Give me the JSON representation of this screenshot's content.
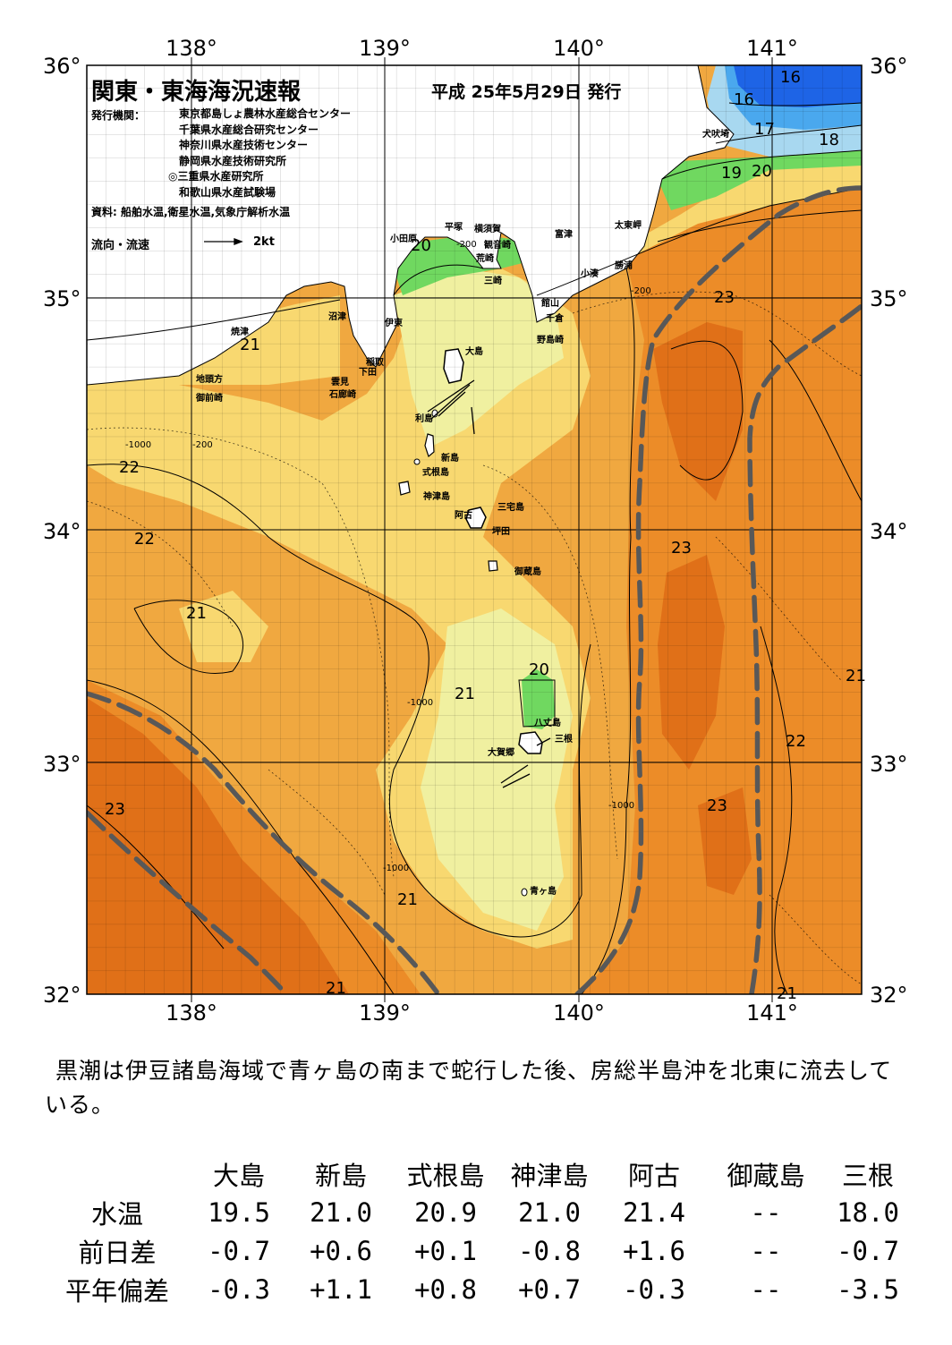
{
  "header": {
    "title": "関東・東海海況速報",
    "date": "平成 25年5月29日 発行",
    "publisher_label": "発行機関：",
    "publishers": [
      "東京都島しょ農林水産総合センター",
      "千葉県水産総合研究センター",
      "神奈川県水産技術センター",
      "静岡県水産技術研究所",
      "◎三重県水産研究所",
      "和歌山県水産試験場"
    ],
    "sources": "資料: 船舶水温,衛星水温,気象庁解析水温",
    "legend_label": "流向・流速",
    "legend_scale": "2kt"
  },
  "axes": {
    "lon_labels": [
      "138°",
      "139°",
      "140°",
      "141°"
    ],
    "lat_labels": [
      "36°",
      "35°",
      "34°",
      "33°",
      "32°"
    ],
    "lon_range": [
      137.5,
      141.5
    ],
    "lat_range": [
      32.0,
      36.0
    ]
  },
  "places": [
    {
      "id": "inubozaki",
      "name": "犬吠埼"
    },
    {
      "id": "taitomisaki",
      "name": "太東岬"
    },
    {
      "id": "katsuura",
      "name": "勝浦"
    },
    {
      "id": "kominato",
      "name": "小湊"
    },
    {
      "id": "futtsu",
      "name": "富津"
    },
    {
      "id": "kannonzaki",
      "name": "観音崎"
    },
    {
      "id": "yokosuka",
      "name": "横須賀"
    },
    {
      "id": "hiratsuka",
      "name": "平塚"
    },
    {
      "id": "odawara",
      "name": "小田原"
    },
    {
      "id": "araizaki",
      "name": "荒崎"
    },
    {
      "id": "misaki",
      "name": "三崎"
    },
    {
      "id": "tateyama",
      "name": "館山"
    },
    {
      "id": "chikura",
      "name": "千倉"
    },
    {
      "id": "nojimazaki",
      "name": "野島崎"
    },
    {
      "id": "numazu",
      "name": "沼津"
    },
    {
      "id": "ito",
      "name": "伊東"
    },
    {
      "id": "yaizu",
      "name": "焼津"
    },
    {
      "id": "inatori",
      "name": "稲取"
    },
    {
      "id": "shimoda",
      "name": "下田"
    },
    {
      "id": "kumomi",
      "name": "雲見"
    },
    {
      "id": "irozaki",
      "name": "石廊崎"
    },
    {
      "id": "jitokata",
      "name": "地頭方"
    },
    {
      "id": "omaezaki",
      "name": "御前崎"
    },
    {
      "id": "oshima",
      "name": "大島"
    },
    {
      "id": "toshima",
      "name": "利島"
    },
    {
      "id": "niijima",
      "name": "新島"
    },
    {
      "id": "shikinejima",
      "name": "式根島"
    },
    {
      "id": "kozushima",
      "name": "神津島"
    },
    {
      "id": "miyakejima",
      "name": "三宅島"
    },
    {
      "id": "ako",
      "name": "阿古"
    },
    {
      "id": "tsubota",
      "name": "坪田"
    },
    {
      "id": "mikurajima",
      "name": "御蔵島"
    },
    {
      "id": "hachijojima",
      "name": "八丈島"
    },
    {
      "id": "mitsune",
      "name": "三根"
    },
    {
      "id": "okago",
      "name": "大賀郷"
    },
    {
      "id": "aogashima",
      "name": "青ヶ島"
    }
  ],
  "isotherm_labels": [
    "16",
    "16",
    "17",
    "18",
    "19",
    "20",
    "20",
    "21",
    "22",
    "22",
    "21",
    "23",
    "23",
    "21",
    "20",
    "21",
    "22",
    "23",
    "21",
    "23",
    "21",
    "21"
  ],
  "depth_labels": [
    "-200",
    "-1000"
  ],
  "summary": "黒潮は伊豆諸島海域で青ヶ島の南まで蛇行した後、房総半島沖を北東に流去している。",
  "table": {
    "columns": [
      "大島",
      "新島",
      "式根島",
      "神津島",
      "阿古",
      "御蔵島",
      "三根"
    ],
    "rows": [
      {
        "label": "水温",
        "values": [
          "19.5",
          "21.0",
          "20.9",
          "21.0",
          "21.4",
          "--",
          "18.0"
        ]
      },
      {
        "label": "前日差",
        "values": [
          "-0.7",
          "+0.6",
          "+0.1",
          "-0.8",
          "+1.6",
          "--",
          "-0.7"
        ]
      },
      {
        "label": "平年偏差",
        "values": [
          "-0.3",
          "+1.1",
          "+0.8",
          "+0.7",
          "-0.3",
          "--",
          "-3.5"
        ]
      }
    ]
  },
  "colors": {
    "t16": "#1e64e6",
    "t17": "#4aa8ee",
    "t18": "#a8d8f0",
    "t19": "#70d860",
    "t20": "#f0f0a0",
    "t21": "#f8d870",
    "t22": "#f0a840",
    "t23": "#ec8c28",
    "t24": "#e07018",
    "kuroshio": "#585858"
  }
}
